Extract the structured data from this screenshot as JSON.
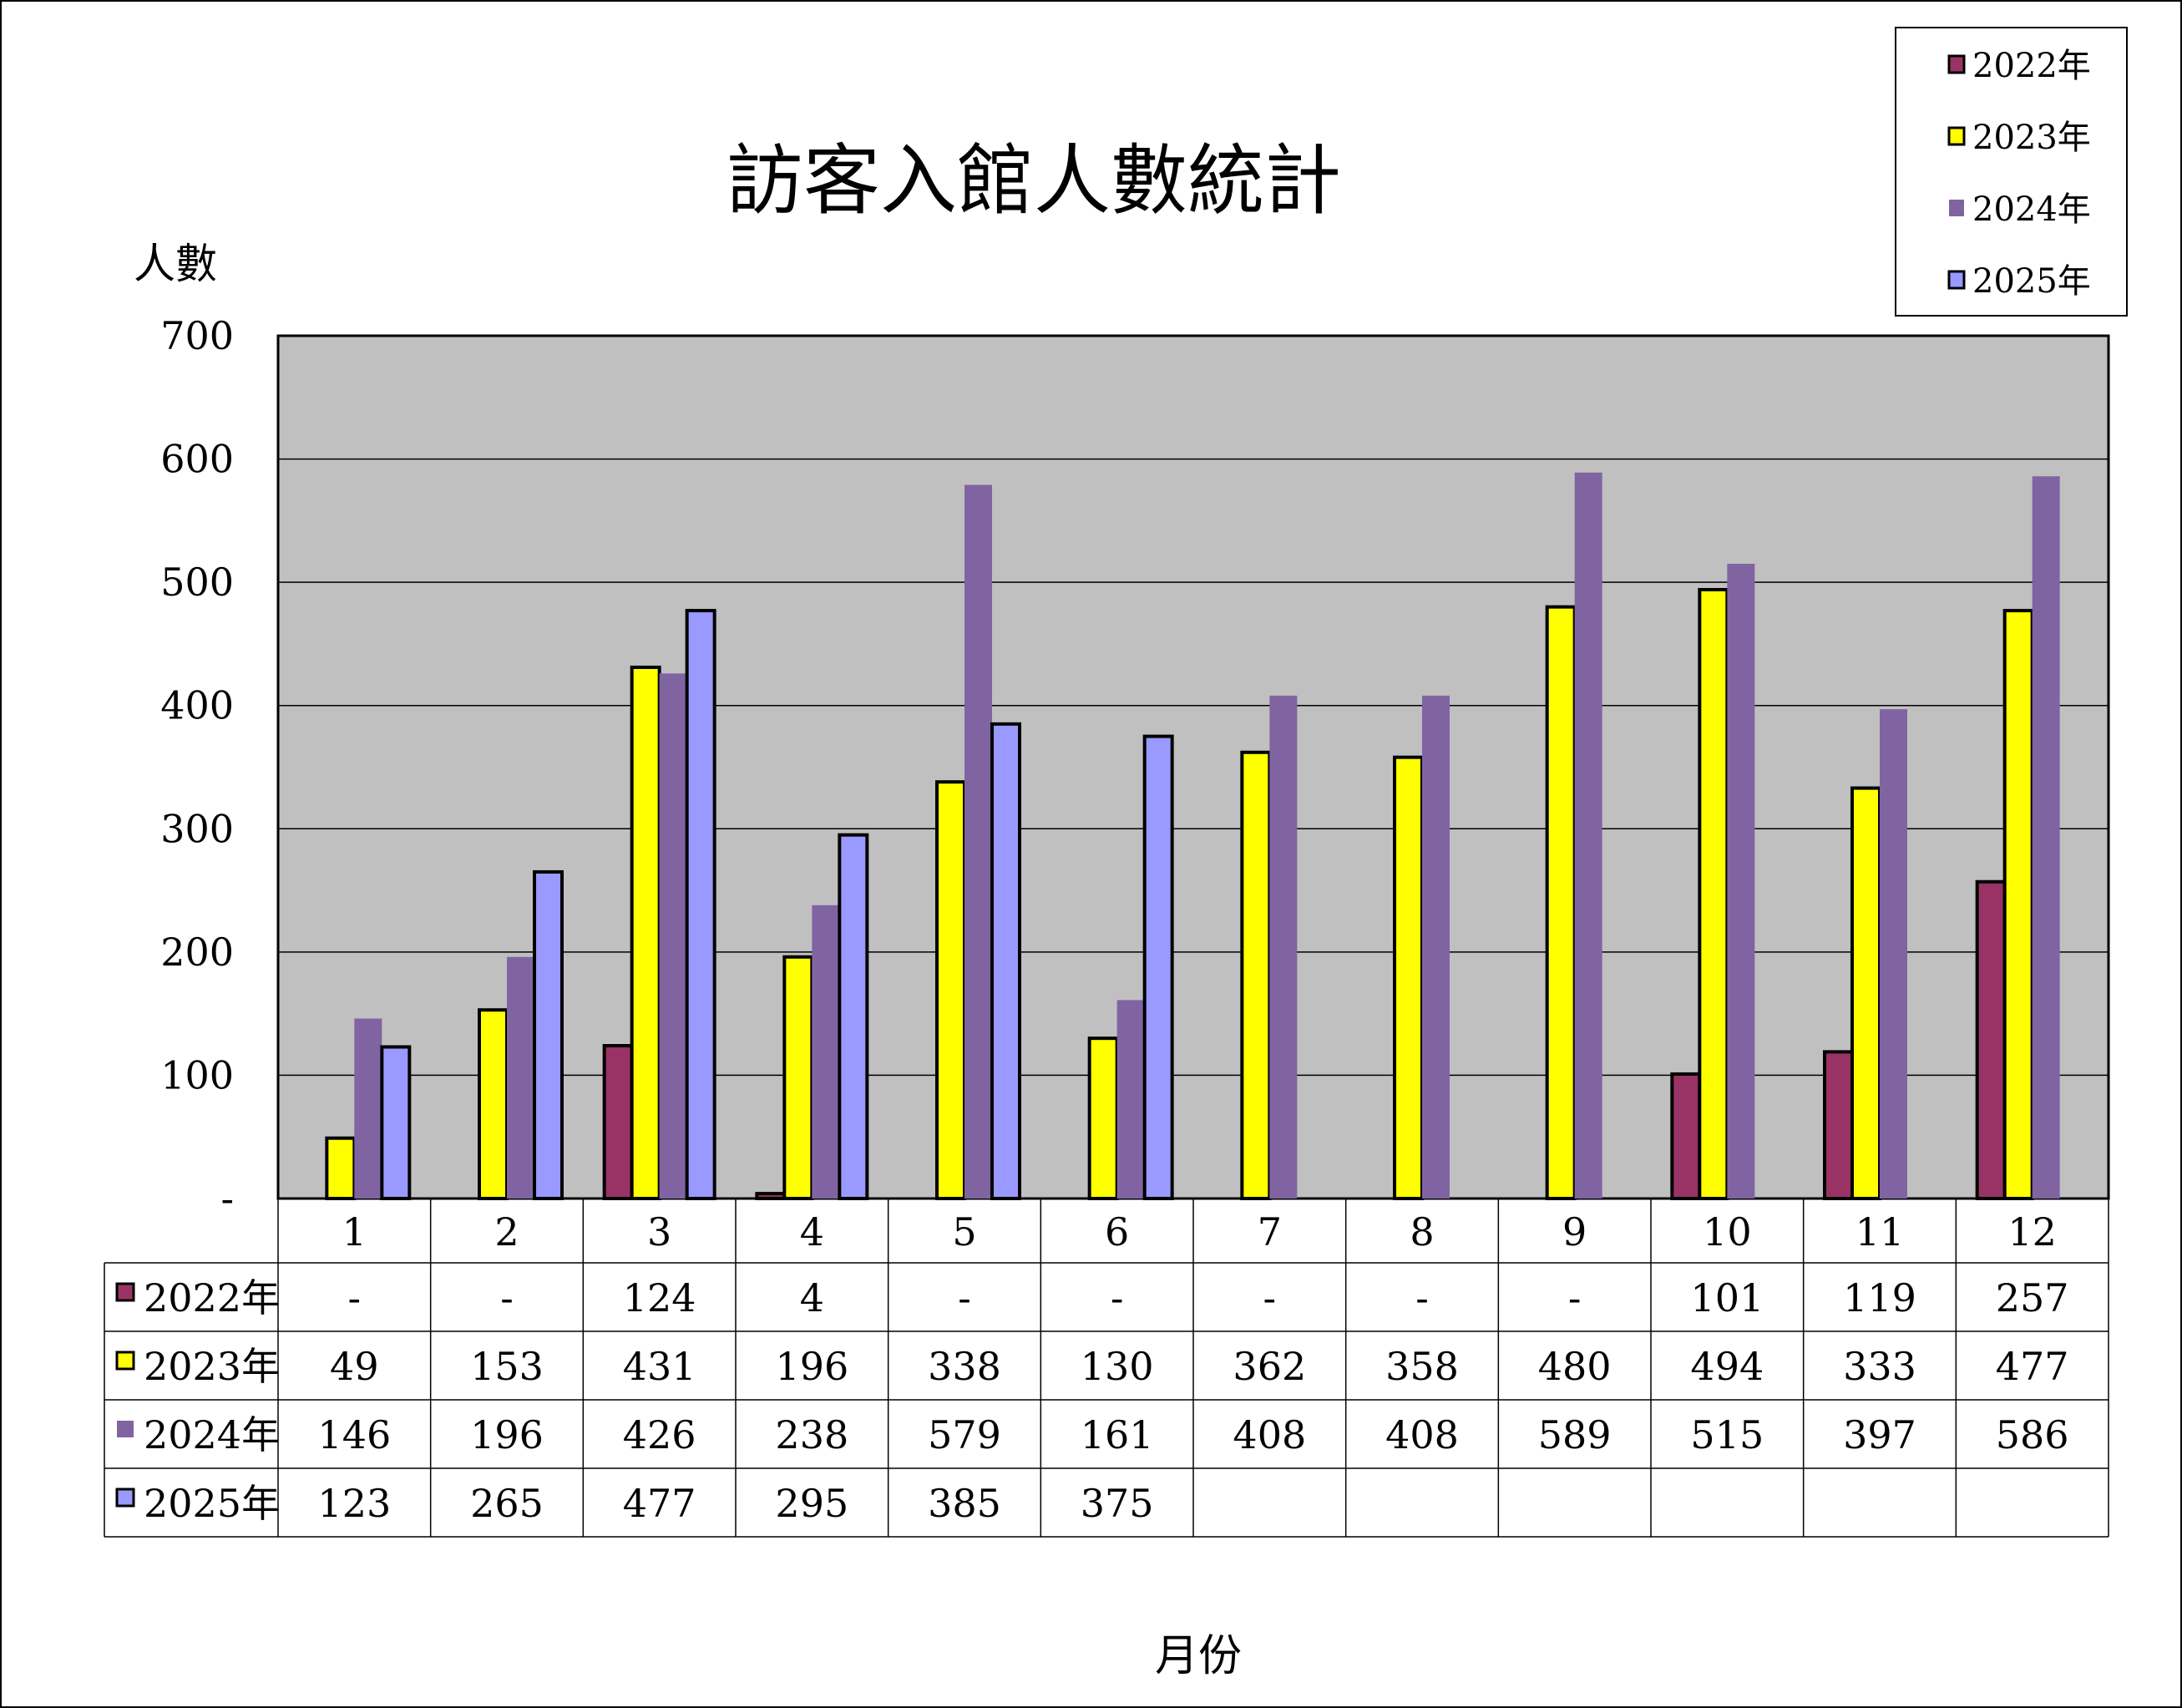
{
  "chart_data": {
    "type": "bar",
    "title": "訪客入館人數統計",
    "ylabel": "人數",
    "xlabel": "月份",
    "ylim": [
      0,
      700
    ],
    "yticks": [
      0,
      100,
      200,
      300,
      400,
      500,
      600,
      700
    ],
    "ytick_labels": [
      "-",
      "100",
      "200",
      "300",
      "400",
      "500",
      "600",
      "700"
    ],
    "grid": true,
    "legend_position": "top-right",
    "categories": [
      "1",
      "2",
      "3",
      "4",
      "5",
      "6",
      "7",
      "8",
      "9",
      "10",
      "11",
      "12"
    ],
    "series": [
      {
        "name": "2022年",
        "color": "#993366",
        "outlined": true,
        "values": [
          null,
          null,
          124,
          4,
          null,
          null,
          null,
          null,
          null,
          101,
          119,
          257
        ],
        "table_labels": [
          "-",
          "-",
          "124",
          "4",
          "-",
          "-",
          "-",
          "-",
          "-",
          "101",
          "119",
          "257"
        ]
      },
      {
        "name": "2023年",
        "color": "#FFFF00",
        "outlined": true,
        "values": [
          49,
          153,
          431,
          196,
          338,
          130,
          362,
          358,
          480,
          494,
          333,
          477
        ],
        "table_labels": [
          "49",
          "153",
          "431",
          "196",
          "338",
          "130",
          "362",
          "358",
          "480",
          "494",
          "333",
          "477"
        ]
      },
      {
        "name": "2024年",
        "color": "#8064A2",
        "outlined": false,
        "values": [
          146,
          196,
          426,
          238,
          579,
          161,
          408,
          408,
          589,
          515,
          397,
          586
        ],
        "table_labels": [
          "146",
          "196",
          "426",
          "238",
          "579",
          "161",
          "408",
          "408",
          "589",
          "515",
          "397",
          "586"
        ]
      },
      {
        "name": "2025年",
        "color": "#9999FF",
        "outlined": true,
        "values": [
          123,
          265,
          477,
          295,
          385,
          375,
          null,
          null,
          null,
          null,
          null,
          null
        ],
        "table_labels": [
          "123",
          "265",
          "477",
          "295",
          "385",
          "375",
          "",
          "",
          "",
          "",
          "",
          ""
        ]
      }
    ],
    "plot_background": "#C0C0C0"
  }
}
